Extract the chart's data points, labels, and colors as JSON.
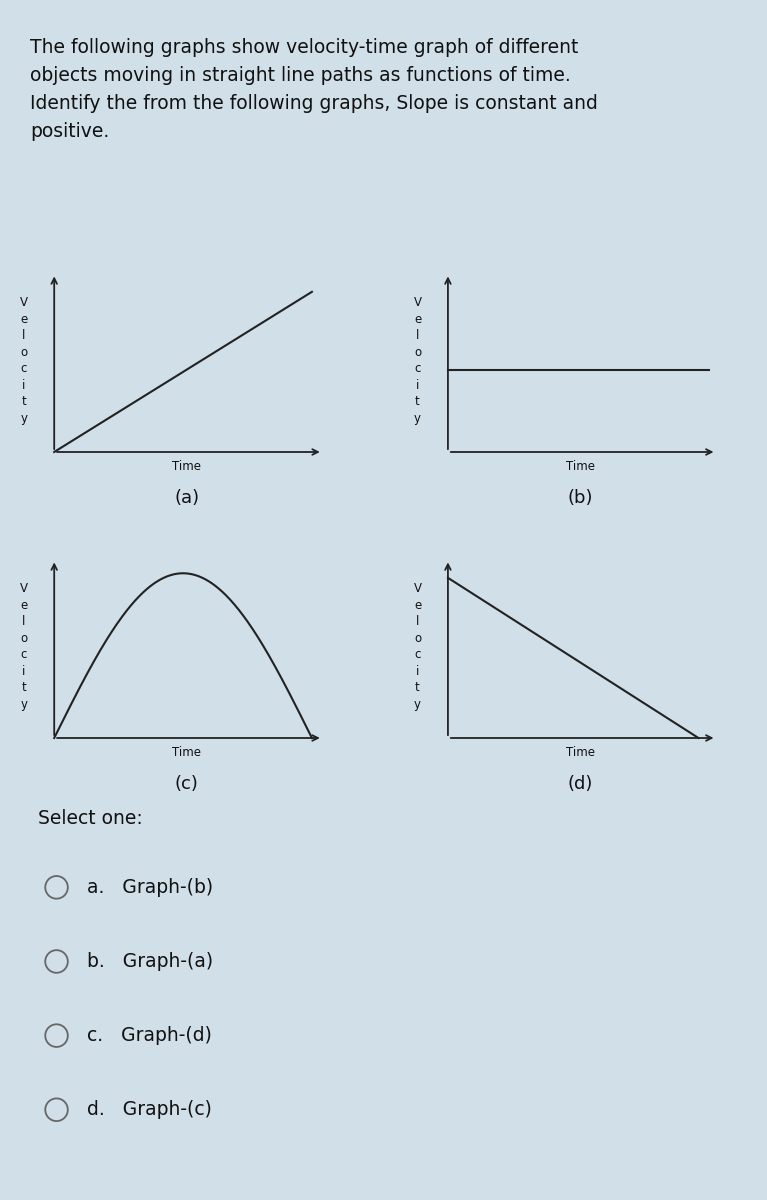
{
  "title_text": "The following graphs show velocity-time graph of different\nobjects moving in straight line paths as functions of time.\nIdentify the from the following graphs, Slope is constant and\npositive.",
  "title_bg": "#d6e4f0",
  "graphs_bg": "#ffffff",
  "outer_bg": "#d0dfe8",
  "select_bg": "#d0dfe8",
  "graph_a_label": "(a)",
  "graph_b_label": "(b)",
  "graph_c_label": "(c)",
  "graph_d_label": "(d)",
  "ylabel_chars": [
    "V",
    "e",
    "l",
    "o",
    "c",
    "i",
    "t",
    "y"
  ],
  "xlabel_text": "Time",
  "select_one_text": "Select one:",
  "options": [
    "a.   Graph-(b)",
    "b.   Graph-(a)",
    "c.   Graph-(d)",
    "d.   Graph-(c)"
  ],
  "line_color": "#222222",
  "axis_color": "#222222",
  "text_color": "#111111",
  "option_text_color": "#111111",
  "radio_color": "#666666"
}
